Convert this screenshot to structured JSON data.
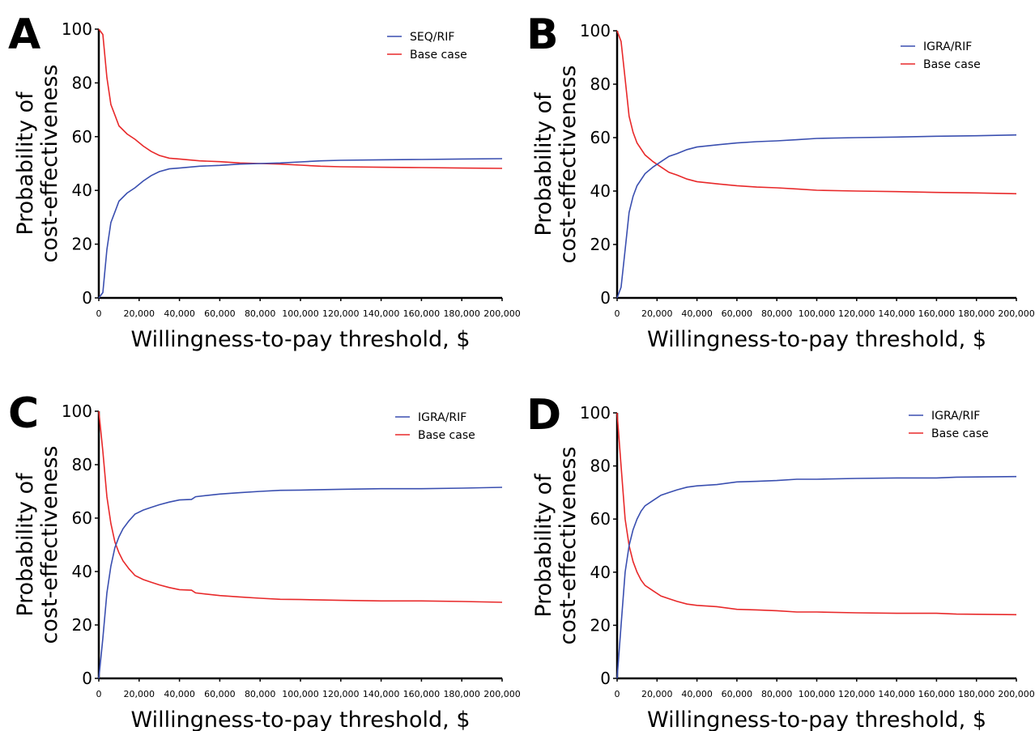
{
  "chart_data": [
    {
      "panel": "A",
      "type": "line",
      "xlabel": "Willingness-to-pay threshold, $",
      "ylabel_lines": [
        "Probability of",
        "cost-effectiveness"
      ],
      "xlim": [
        0,
        200000
      ],
      "ylim": [
        0,
        100
      ],
      "xticks": [
        0,
        20000,
        40000,
        60000,
        80000,
        100000,
        120000,
        140000,
        160000,
        180000,
        200000
      ],
      "xtick_labels": [
        "0",
        "20,000",
        "40,000",
        "60,000",
        "80,000",
        "100,000",
        "120,000",
        "140,000",
        "160,000",
        "180,000",
        "200,000"
      ],
      "yticks": [
        0,
        20,
        40,
        60,
        80,
        100
      ],
      "ytick_labels": [
        "0",
        "20",
        "40",
        "60",
        "80",
        "100"
      ],
      "grid": false,
      "legend_position": "top-right",
      "series": [
        {
          "name": "SEQ/RIF",
          "color": "#3a4fb0",
          "x": [
            0,
            2000,
            4000,
            6000,
            8000,
            10000,
            14000,
            18000,
            22000,
            26000,
            30000,
            35000,
            40000,
            50000,
            60000,
            70000,
            80000,
            90000,
            100000,
            110000,
            120000,
            140000,
            160000,
            180000,
            200000
          ],
          "y": [
            0,
            2,
            18,
            28,
            32,
            36,
            39,
            41,
            43.5,
            45.5,
            47,
            48,
            48.3,
            49,
            49.3,
            49.8,
            50,
            50.2,
            50.6,
            51,
            51.2,
            51.4,
            51.5,
            51.7,
            51.8
          ]
        },
        {
          "name": "Base case",
          "color": "#e8292a",
          "x": [
            0,
            2000,
            4000,
            6000,
            8000,
            10000,
            14000,
            18000,
            22000,
            26000,
            30000,
            35000,
            40000,
            50000,
            60000,
            70000,
            80000,
            90000,
            100000,
            110000,
            120000,
            140000,
            160000,
            180000,
            200000
          ],
          "y": [
            100,
            98,
            82,
            72,
            68,
            64,
            61,
            59,
            56.5,
            54.5,
            53,
            52,
            51.7,
            51,
            50.7,
            50.2,
            50,
            49.8,
            49.4,
            49,
            48.8,
            48.6,
            48.5,
            48.3,
            48.2
          ]
        }
      ]
    },
    {
      "panel": "B",
      "type": "line",
      "xlabel": "Willingness-to-pay threshold, $",
      "ylabel_lines": [
        "Probability of",
        "cost-effectiveness"
      ],
      "xlim": [
        0,
        200000
      ],
      "ylim": [
        0,
        100
      ],
      "xticks": [
        0,
        20000,
        40000,
        60000,
        80000,
        100000,
        120000,
        140000,
        160000,
        180000,
        200000
      ],
      "xtick_labels": [
        "0",
        "20,000",
        "40,000",
        "60,000",
        "80,000",
        "100,000",
        "120,000",
        "140,000",
        "160,000",
        "180,000",
        "200,000"
      ],
      "yticks": [
        0,
        20,
        40,
        60,
        80,
        100
      ],
      "ytick_labels": [
        "0",
        "20",
        "40",
        "60",
        "80",
        "100"
      ],
      "grid": false,
      "legend_position": "top-right",
      "series": [
        {
          "name": "IGRA/RIF",
          "color": "#3a4fb0",
          "x": [
            0,
            2000,
            4000,
            6000,
            8000,
            10000,
            14000,
            18000,
            22000,
            26000,
            30000,
            35000,
            40000,
            50000,
            60000,
            70000,
            80000,
            90000,
            100000,
            120000,
            140000,
            160000,
            180000,
            200000
          ],
          "y": [
            0,
            4,
            18,
            32,
            38,
            42,
            46.5,
            49,
            51,
            53,
            54,
            55.5,
            56.5,
            57.3,
            58,
            58.5,
            58.8,
            59.2,
            59.7,
            60,
            60.2,
            60.5,
            60.7,
            61
          ]
        },
        {
          "name": "Base case",
          "color": "#e8292a",
          "x": [
            0,
            2000,
            4000,
            6000,
            8000,
            10000,
            14000,
            18000,
            22000,
            26000,
            30000,
            35000,
            40000,
            50000,
            60000,
            70000,
            80000,
            90000,
            100000,
            120000,
            140000,
            160000,
            180000,
            200000
          ],
          "y": [
            100,
            96,
            82,
            68,
            62,
            58,
            53.5,
            51,
            49,
            47,
            46,
            44.5,
            43.5,
            42.7,
            42,
            41.5,
            41.2,
            40.8,
            40.3,
            40,
            39.8,
            39.5,
            39.3,
            39
          ]
        }
      ]
    },
    {
      "panel": "C",
      "type": "line",
      "xlabel": "Willingness-to-pay threshold, $",
      "ylabel_lines": [
        "Probability of",
        "cost-effectiveness"
      ],
      "xlim": [
        0,
        200000
      ],
      "ylim": [
        0,
        100
      ],
      "xticks": [
        0,
        20000,
        40000,
        60000,
        80000,
        100000,
        120000,
        140000,
        160000,
        180000,
        200000
      ],
      "xtick_labels": [
        "0",
        "20,000",
        "40,000",
        "60,000",
        "80,000",
        "100,000",
        "120,000",
        "140,000",
        "160,000",
        "180,000",
        "200,000"
      ],
      "yticks": [
        0,
        20,
        40,
        60,
        80,
        100
      ],
      "ytick_labels": [
        "0",
        "20",
        "40",
        "60",
        "80",
        "100"
      ],
      "grid": false,
      "legend_position": "top-right",
      "series": [
        {
          "name": "IGRA/RIF",
          "color": "#3a4fb0",
          "x": [
            0,
            2000,
            4000,
            6000,
            8000,
            10000,
            12000,
            15000,
            18000,
            22000,
            26000,
            30000,
            35000,
            40000,
            46000,
            48000,
            60000,
            70000,
            80000,
            90000,
            100000,
            120000,
            140000,
            160000,
            180000,
            200000
          ],
          "y": [
            0,
            15,
            32,
            42,
            49,
            53,
            56,
            59,
            61.5,
            63,
            64,
            65,
            66,
            66.8,
            67,
            68,
            69,
            69.5,
            70,
            70.4,
            70.5,
            70.8,
            71,
            71,
            71.2,
            71.5
          ]
        },
        {
          "name": "Base case",
          "color": "#e8292a",
          "x": [
            0,
            2000,
            4000,
            6000,
            8000,
            10000,
            12000,
            15000,
            18000,
            22000,
            26000,
            30000,
            35000,
            40000,
            46000,
            48000,
            60000,
            70000,
            80000,
            90000,
            100000,
            120000,
            140000,
            160000,
            180000,
            200000
          ],
          "y": [
            100,
            85,
            68,
            58,
            51,
            47,
            44,
            41,
            38.5,
            37,
            36,
            35,
            34,
            33.2,
            33,
            32,
            31,
            30.5,
            30,
            29.6,
            29.5,
            29.2,
            29,
            29,
            28.8,
            28.5
          ]
        }
      ]
    },
    {
      "panel": "D",
      "type": "line",
      "xlabel": "Willingness-to-pay threshold, $",
      "ylabel_lines": [
        "Probability of",
        "cost-effectiveness"
      ],
      "xlim": [
        0,
        200000
      ],
      "ylim": [
        0,
        100
      ],
      "xticks": [
        0,
        20000,
        40000,
        60000,
        80000,
        100000,
        120000,
        140000,
        160000,
        180000,
        200000
      ],
      "xtick_labels": [
        "0",
        "20,000",
        "40,000",
        "60,000",
        "80,000",
        "100,000",
        "120,000",
        "140,000",
        "160,000",
        "180,000",
        "200,000"
      ],
      "yticks": [
        0,
        20,
        40,
        60,
        80,
        100
      ],
      "ytick_labels": [
        "0",
        "20",
        "40",
        "60",
        "80",
        "100"
      ],
      "grid": false,
      "legend_position": "top-right",
      "series": [
        {
          "name": "IGRA/RIF",
          "color": "#3a4fb0",
          "x": [
            0,
            2000,
            4000,
            6000,
            8000,
            10000,
            12000,
            14000,
            18000,
            22000,
            26000,
            30000,
            35000,
            40000,
            50000,
            60000,
            70000,
            80000,
            90000,
            100000,
            120000,
            140000,
            160000,
            170000,
            200000
          ],
          "y": [
            0,
            20,
            40,
            50,
            56,
            60,
            63,
            65,
            67,
            69,
            70,
            71,
            72,
            72.5,
            73,
            74,
            74.2,
            74.5,
            75,
            75,
            75.3,
            75.5,
            75.5,
            75.8,
            76
          ]
        },
        {
          "name": "Base case",
          "color": "#e8292a",
          "x": [
            0,
            2000,
            4000,
            6000,
            8000,
            10000,
            12000,
            14000,
            18000,
            22000,
            26000,
            30000,
            35000,
            40000,
            50000,
            60000,
            70000,
            80000,
            90000,
            100000,
            120000,
            140000,
            160000,
            170000,
            200000
          ],
          "y": [
            100,
            80,
            60,
            50,
            44,
            40,
            37,
            35,
            33,
            31,
            30,
            29,
            28,
            27.5,
            27,
            26,
            25.8,
            25.5,
            25,
            25,
            24.7,
            24.5,
            24.5,
            24.2,
            24
          ]
        }
      ]
    }
  ]
}
